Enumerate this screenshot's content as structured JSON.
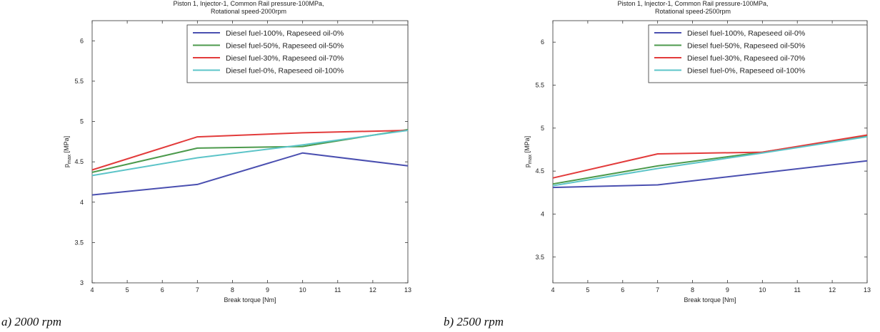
{
  "chart_data": [
    {
      "type": "line",
      "title_lines": [
        "Piston 1, Injector-1, Common Rail pressure-100MPa,",
        "Rotational speed-2000rpm"
      ],
      "xlabel": "Break torque [Nm]",
      "ylabel_main": "p",
      "ylabel_sub": "max",
      "ylabel_unit": " [MPa]",
      "xlim": [
        4,
        13
      ],
      "ylim": [
        3,
        6.25
      ],
      "xticks": [
        4,
        5,
        6,
        7,
        8,
        9,
        10,
        11,
        12,
        13
      ],
      "yticks": [
        3,
        3.5,
        4,
        4.5,
        5,
        5.5,
        6
      ],
      "grid": false,
      "legend_position": "top-right",
      "series": [
        {
          "name": "Diesel fuel-100%, Rapeseed oil-0%",
          "color": "#4a4fb0",
          "x": [
            4,
            7,
            10,
            13
          ],
          "y": [
            4.09,
            4.22,
            4.61,
            4.45
          ]
        },
        {
          "name": "Diesel fuel-50%, Rapeseed oil-50%",
          "color": "#4c9a4c",
          "x": [
            4,
            7,
            10,
            13
          ],
          "y": [
            4.37,
            4.67,
            4.69,
            4.9
          ]
        },
        {
          "name": "Diesel fuel-30%, Rapeseed oil-70%",
          "color": "#e23b3b",
          "x": [
            4,
            7,
            10,
            13
          ],
          "y": [
            4.4,
            4.81,
            4.86,
            4.89
          ]
        },
        {
          "name": "Diesel fuel-0%, Rapeseed oil-100%",
          "color": "#5cc4c8",
          "x": [
            4,
            7,
            10,
            13
          ],
          "y": [
            4.33,
            4.55,
            4.71,
            4.89
          ]
        }
      ]
    },
    {
      "type": "line",
      "title_lines": [
        "Piston 1, Injector-1, Common Rail pressure-100MPa,",
        "Rotational speed-2500rpm"
      ],
      "xlabel": "Break torque [Nm]",
      "ylabel_main": "p",
      "ylabel_sub": "max",
      "ylabel_unit": " [MPa]",
      "xlim": [
        4,
        13
      ],
      "ylim": [
        3.2,
        6.25
      ],
      "xticks": [
        4,
        5,
        6,
        7,
        8,
        9,
        10,
        11,
        12,
        13
      ],
      "yticks": [
        3.5,
        4,
        4.5,
        5,
        5.5,
        6
      ],
      "grid": false,
      "legend_position": "top-right",
      "series": [
        {
          "name": "Diesel fuel-100%, Rapeseed oil-0%",
          "color": "#4a4fb0",
          "x": [
            4,
            7,
            10,
            13
          ],
          "y": [
            4.31,
            4.34,
            4.48,
            4.62
          ]
        },
        {
          "name": "Diesel fuel-50%, Rapeseed oil-50%",
          "color": "#4c9a4c",
          "x": [
            4,
            7,
            10,
            13
          ],
          "y": [
            4.35,
            4.56,
            4.72,
            4.91
          ]
        },
        {
          "name": "Diesel fuel-30%, Rapeseed oil-70%",
          "color": "#e23b3b",
          "x": [
            4,
            7,
            10,
            13
          ],
          "y": [
            4.42,
            4.7,
            4.72,
            4.92
          ]
        },
        {
          "name": "Diesel fuel-0%, Rapeseed oil-100%",
          "color": "#5cc4c8",
          "x": [
            4,
            7,
            10,
            13
          ],
          "y": [
            4.33,
            4.53,
            4.71,
            4.9
          ]
        }
      ]
    }
  ],
  "captions": {
    "left": "a) 2000 rpm",
    "right": "b) 2500 rpm"
  }
}
